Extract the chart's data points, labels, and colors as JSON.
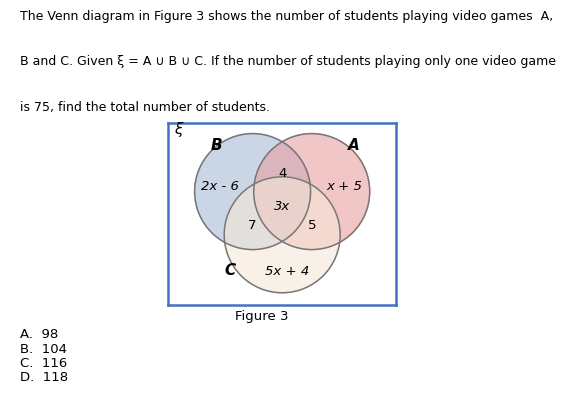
{
  "figure_caption": "Figure 3",
  "answers": [
    "A.  98",
    "B.  104",
    "C.  116",
    "D.  118"
  ],
  "circle_A_color": "#e8a0a0",
  "circle_B_color": "#a8bcd4",
  "circle_C_color": "#f5e6d8",
  "circle_alpha": 0.6,
  "label_A": "A",
  "label_B": "B",
  "label_C": "C",
  "label_xi": "ξ",
  "region_only_B": "2x - 6",
  "region_only_A": "x + 5",
  "region_only_C": "5x + 4",
  "region_AB": "4",
  "region_BC": "7",
  "region_AC": "5",
  "region_ABC": "3x",
  "box_color": "#4472c4",
  "text_color": "#000000",
  "answer_color": "#000000",
  "caption_color": "#000000",
  "line1": "The Venn diagram in Figure 3 shows the number of students playing video games  A,",
  "line2": "B and C. Given ξ = A ∪ B ∪ C. If the number of students playing only one video game",
  "line3": "is 75, find the total number of students."
}
